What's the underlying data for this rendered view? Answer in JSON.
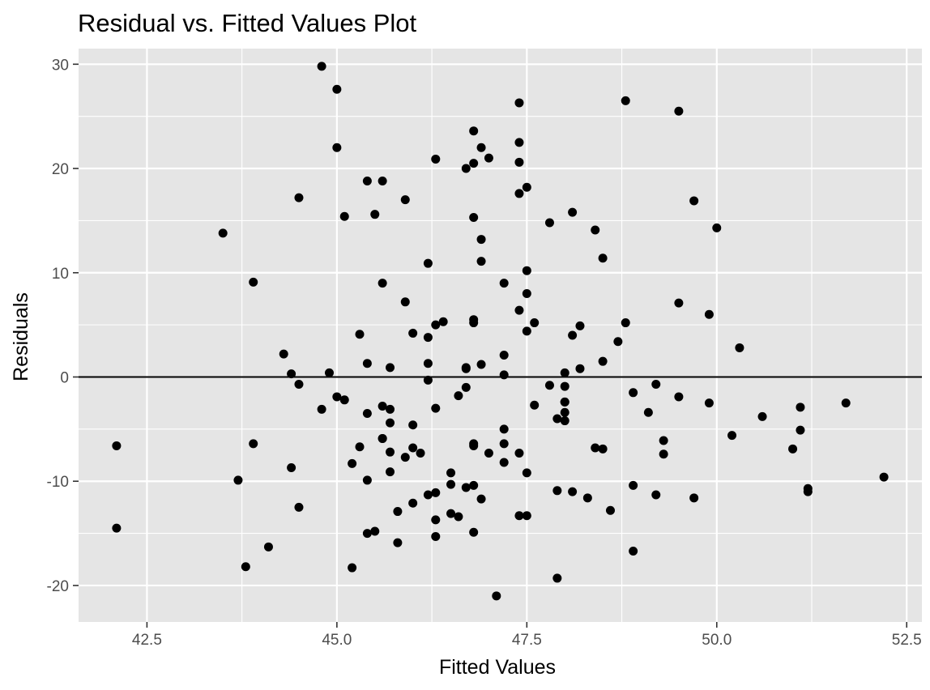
{
  "chart_data": {
    "type": "scatter",
    "title": "Residual vs. Fitted Values Plot",
    "xlabel": "Fitted Values",
    "ylabel": "Residuals",
    "xlim": [
      41.6,
      52.7
    ],
    "ylim": [
      -23.5,
      31.5
    ],
    "x_ticks": [
      42.5,
      45.0,
      47.5,
      50.0,
      52.5
    ],
    "x_tick_labels": [
      "42.5",
      "45.0",
      "47.5",
      "50.0",
      "52.5"
    ],
    "y_ticks": [
      -20,
      -10,
      0,
      10,
      20,
      30
    ],
    "y_tick_labels": [
      "-20",
      "-10",
      "0",
      "10",
      "20",
      "30"
    ],
    "grid": true,
    "background": "#e5e5e5",
    "grid_color": "#ffffff",
    "point_color": "#000000",
    "reference_line": {
      "y": 0,
      "color": "#000000"
    },
    "points": [
      [
        42.1,
        -6.6
      ],
      [
        42.1,
        -14.5
      ],
      [
        43.5,
        13.8
      ],
      [
        43.7,
        -9.9
      ],
      [
        43.8,
        -18.2
      ],
      [
        43.9,
        -6.4
      ],
      [
        43.9,
        9.1
      ],
      [
        44.1,
        -16.3
      ],
      [
        44.3,
        2.2
      ],
      [
        44.4,
        -8.7
      ],
      [
        44.4,
        0.3
      ],
      [
        44.5,
        17.2
      ],
      [
        44.5,
        -0.7
      ],
      [
        44.5,
        -12.5
      ],
      [
        44.8,
        29.8
      ],
      [
        44.8,
        -3.1
      ],
      [
        44.9,
        0.4
      ],
      [
        45.0,
        27.6
      ],
      [
        45.0,
        22.0
      ],
      [
        45.0,
        -1.9
      ],
      [
        45.1,
        -2.2
      ],
      [
        45.1,
        15.4
      ],
      [
        45.2,
        -8.3
      ],
      [
        45.2,
        -18.3
      ],
      [
        45.3,
        4.1
      ],
      [
        45.3,
        -6.7
      ],
      [
        45.4,
        -9.9
      ],
      [
        45.4,
        18.8
      ],
      [
        45.4,
        -3.5
      ],
      [
        45.4,
        1.3
      ],
      [
        45.4,
        -15.0
      ],
      [
        45.5,
        -14.8
      ],
      [
        45.5,
        15.6
      ],
      [
        45.6,
        18.8
      ],
      [
        45.6,
        9.0
      ],
      [
        45.6,
        -5.9
      ],
      [
        45.6,
        -5.9
      ],
      [
        45.6,
        -2.8
      ],
      [
        45.7,
        -4.4
      ],
      [
        45.7,
        0.9
      ],
      [
        45.7,
        -7.2
      ],
      [
        45.7,
        -9.1
      ],
      [
        45.7,
        -3.1
      ],
      [
        45.8,
        -15.9
      ],
      [
        45.8,
        -12.9
      ],
      [
        45.9,
        7.2
      ],
      [
        45.9,
        -7.7
      ],
      [
        45.9,
        17.0
      ],
      [
        46.0,
        -6.8
      ],
      [
        46.0,
        -12.1
      ],
      [
        46.0,
        4.2
      ],
      [
        46.0,
        -4.6
      ],
      [
        46.1,
        -7.3
      ],
      [
        46.2,
        -11.3
      ],
      [
        46.2,
        1.3
      ],
      [
        46.2,
        -0.3
      ],
      [
        46.2,
        3.8
      ],
      [
        46.2,
        10.9
      ],
      [
        46.3,
        -11.1
      ],
      [
        46.3,
        20.9
      ],
      [
        46.3,
        5.0
      ],
      [
        46.3,
        -3.0
      ],
      [
        46.3,
        -13.7
      ],
      [
        46.3,
        -15.3
      ],
      [
        46.4,
        5.3
      ],
      [
        46.5,
        -10.3
      ],
      [
        46.5,
        -9.2
      ],
      [
        46.5,
        -13.1
      ],
      [
        46.6,
        -13.4
      ],
      [
        46.6,
        -1.8
      ],
      [
        46.7,
        -1.0
      ],
      [
        46.7,
        20.0
      ],
      [
        46.7,
        -10.6
      ],
      [
        46.7,
        0.8
      ],
      [
        46.7,
        0.9
      ],
      [
        46.8,
        5.5
      ],
      [
        46.8,
        5.2
      ],
      [
        46.8,
        23.6
      ],
      [
        46.8,
        15.3
      ],
      [
        46.8,
        20.5
      ],
      [
        46.8,
        -6.6
      ],
      [
        46.8,
        -6.4
      ],
      [
        46.8,
        -10.4
      ],
      [
        46.8,
        -14.9
      ],
      [
        46.9,
        13.2
      ],
      [
        46.9,
        -11.7
      ],
      [
        46.9,
        1.2
      ],
      [
        46.9,
        22.0
      ],
      [
        46.9,
        11.1
      ],
      [
        47.0,
        21.0
      ],
      [
        47.0,
        -7.3
      ],
      [
        47.1,
        -21.0
      ],
      [
        47.2,
        -6.4
      ],
      [
        47.2,
        -5.0
      ],
      [
        47.2,
        -8.2
      ],
      [
        47.2,
        9.0
      ],
      [
        47.2,
        2.1
      ],
      [
        47.2,
        0.2
      ],
      [
        47.4,
        20.6
      ],
      [
        47.4,
        6.4
      ],
      [
        47.4,
        26.3
      ],
      [
        47.4,
        22.5
      ],
      [
        47.4,
        -7.3
      ],
      [
        47.4,
        17.6
      ],
      [
        47.4,
        -13.3
      ],
      [
        47.5,
        18.2
      ],
      [
        47.5,
        10.2
      ],
      [
        47.5,
        8.0
      ],
      [
        47.5,
        4.4
      ],
      [
        47.5,
        -9.2
      ],
      [
        47.5,
        -13.3
      ],
      [
        47.6,
        -2.7
      ],
      [
        47.6,
        5.2
      ],
      [
        47.8,
        14.8
      ],
      [
        47.8,
        -0.8
      ],
      [
        47.9,
        -19.3
      ],
      [
        47.9,
        -10.9
      ],
      [
        47.9,
        -4.0
      ],
      [
        48.0,
        -2.4
      ],
      [
        48.0,
        -2.4
      ],
      [
        48.0,
        -0.9
      ],
      [
        48.0,
        -3.4
      ],
      [
        48.0,
        -4.2
      ],
      [
        48.0,
        0.4
      ],
      [
        48.1,
        15.8
      ],
      [
        48.1,
        4.0
      ],
      [
        48.1,
        -11.0
      ],
      [
        48.2,
        0.8
      ],
      [
        48.2,
        4.9
      ],
      [
        48.3,
        -11.6
      ],
      [
        48.4,
        14.1
      ],
      [
        48.4,
        -6.8
      ],
      [
        48.5,
        11.4
      ],
      [
        48.5,
        -6.9
      ],
      [
        48.5,
        1.5
      ],
      [
        48.6,
        -12.8
      ],
      [
        48.7,
        3.4
      ],
      [
        48.8,
        26.5
      ],
      [
        48.8,
        5.2
      ],
      [
        48.9,
        -1.5
      ],
      [
        48.9,
        -10.4
      ],
      [
        48.9,
        -16.7
      ],
      [
        49.1,
        -3.4
      ],
      [
        49.2,
        -11.3
      ],
      [
        49.2,
        -0.7
      ],
      [
        49.3,
        -7.4
      ],
      [
        49.3,
        -6.1
      ],
      [
        49.5,
        25.5
      ],
      [
        49.5,
        7.1
      ],
      [
        49.5,
        -1.9
      ],
      [
        49.7,
        16.9
      ],
      [
        49.7,
        -11.6
      ],
      [
        49.9,
        -2.5
      ],
      [
        49.9,
        6.0
      ],
      [
        50.0,
        14.3
      ],
      [
        50.3,
        2.8
      ],
      [
        50.2,
        -5.6
      ],
      [
        50.6,
        -3.8
      ],
      [
        51.0,
        -6.9
      ],
      [
        51.1,
        -2.9
      ],
      [
        51.1,
        -5.1
      ],
      [
        51.2,
        -10.7
      ],
      [
        51.2,
        -11.0
      ],
      [
        51.7,
        -2.5
      ],
      [
        52.2,
        -9.6
      ]
    ]
  }
}
